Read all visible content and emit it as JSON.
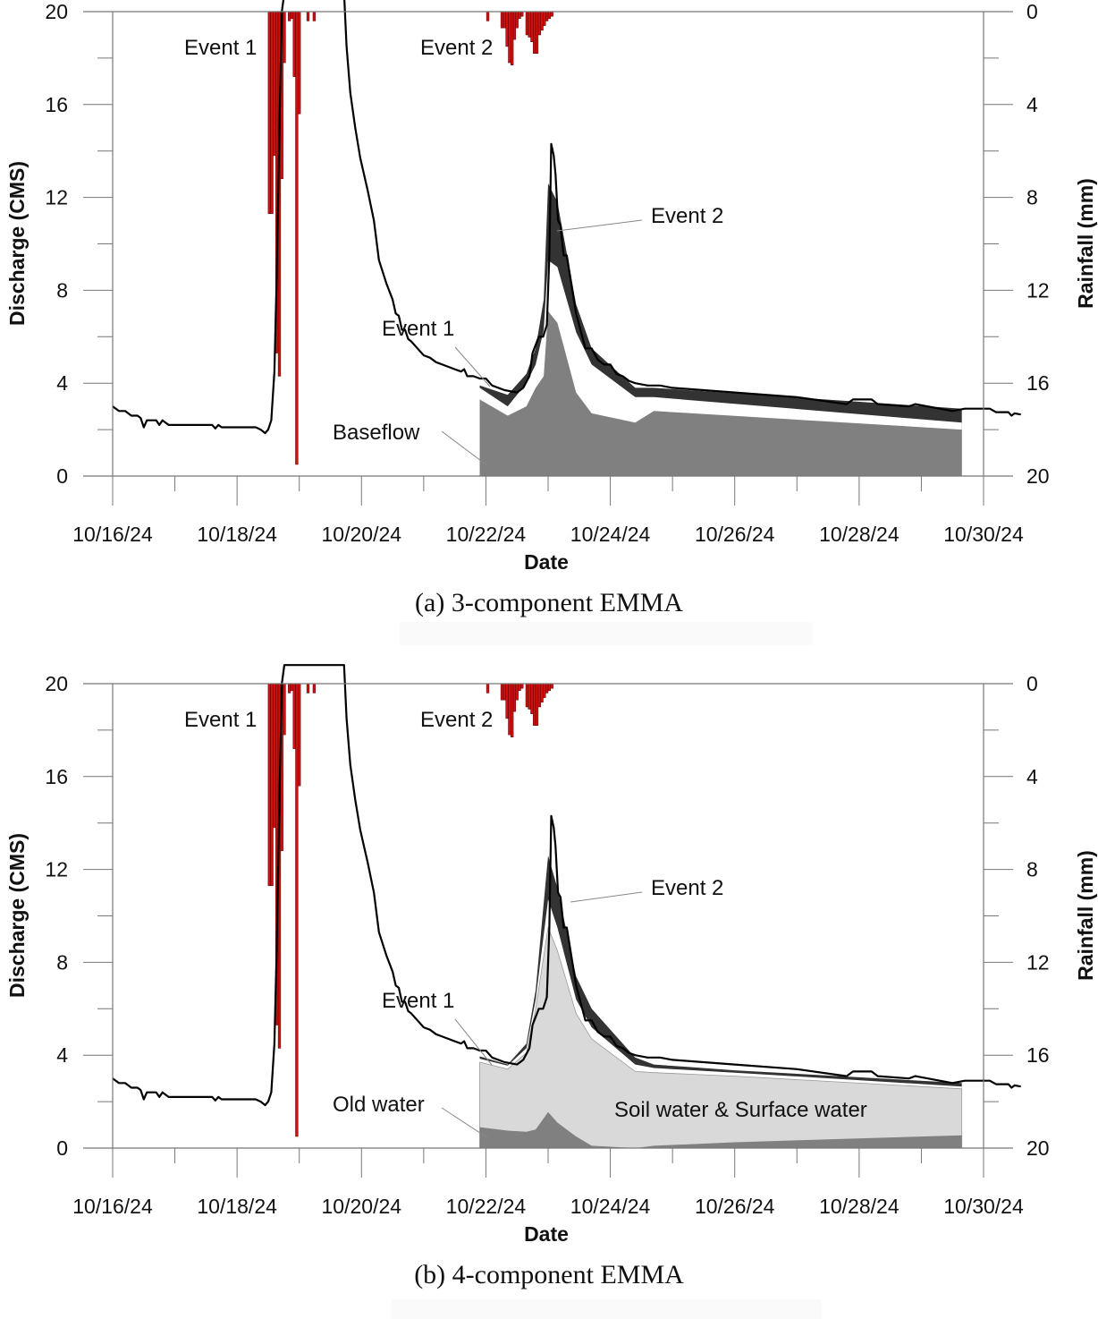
{
  "figure": {
    "panels": [
      "a",
      "b"
    ]
  },
  "chart_data": [
    {
      "id": "a",
      "type": "area",
      "caption": "(a) 3-component EMMA",
      "xlabel": "Date",
      "ylabel": "Discharge (CMS)",
      "ylabel_right": "Rainfall (mm)",
      "x_unit": "days since 10/16/24 00:00",
      "xlim": [
        0,
        14
      ],
      "ylim": [
        0,
        20
      ],
      "ylim_right": [
        20,
        0
      ],
      "right_axis_inverted": true,
      "x_ticks": [
        0,
        2,
        4,
        6,
        8,
        10,
        12,
        14
      ],
      "x_tick_labels": [
        "10/16/24",
        "10/18/24",
        "10/20/24",
        "10/22/24",
        "10/24/24",
        "10/26/24",
        "10/28/24",
        "10/30/24"
      ],
      "x_minor_ticks": [
        1,
        3,
        5,
        7,
        9,
        11,
        13
      ],
      "y_ticks": [
        0,
        4,
        8,
        12,
        16,
        20
      ],
      "y_tick_labels": [
        "0",
        "4",
        "8",
        "12",
        "16",
        "20"
      ],
      "y_right_ticks": [
        0,
        4,
        8,
        12,
        16,
        20
      ],
      "y_right_tick_labels": [
        "0",
        "4",
        "8",
        "12",
        "16",
        "20"
      ],
      "grid": false,
      "series": [
        {
          "name": "Discharge (observed)",
          "kind": "line",
          "color": "#000000",
          "x": [
            0,
            0.1,
            0.2,
            0.3,
            0.35,
            0.4,
            0.45,
            0.5,
            0.55,
            0.6,
            0.7,
            0.75,
            0.8,
            0.9,
            1.0,
            1.5,
            1.6,
            1.65,
            1.7,
            1.75,
            2.0,
            2.3,
            2.38,
            2.45,
            2.5,
            2.55,
            2.6,
            2.64,
            2.68,
            2.72,
            2.76,
            3.72,
            3.76,
            3.82,
            3.9,
            3.98,
            4.1,
            4.2,
            4.28,
            4.4,
            4.5,
            4.55,
            4.6,
            4.65,
            4.7,
            4.75,
            4.8,
            4.9,
            5.0,
            5.1,
            5.2,
            5.3,
            5.4,
            5.5,
            5.6,
            5.65,
            5.7,
            5.8,
            5.9,
            6.0,
            6.1,
            6.3,
            6.5,
            6.6,
            6.7,
            6.75,
            6.85,
            6.92,
            6.98,
            7.02,
            7.05,
            7.09,
            7.12,
            7.16,
            7.2,
            7.25,
            7.3,
            7.45,
            7.6,
            7.7,
            7.8,
            7.9,
            8.0,
            8.1,
            8.2,
            8.3,
            8.4,
            8.6,
            8.8,
            9.0,
            10.0,
            11.0,
            11.8,
            11.9,
            12.2,
            12.3,
            12.8,
            12.9,
            13.5,
            13.7,
            14.1,
            14.2,
            14.4,
            14.45,
            14.5,
            14.6
          ],
          "y": [
            3.0,
            2.8,
            2.8,
            2.6,
            2.6,
            2.6,
            2.5,
            2.1,
            2.4,
            2.4,
            2.4,
            2.2,
            2.4,
            2.2,
            2.2,
            2.2,
            2.2,
            2.05,
            2.2,
            2.1,
            2.1,
            2.1,
            2.0,
            1.85,
            2.0,
            2.4,
            4.5,
            9.0,
            15.0,
            20.0,
            21.0,
            21.0,
            18.5,
            16.5,
            15.0,
            13.7,
            12.3,
            11.0,
            9.3,
            8.3,
            7.6,
            7.0,
            6.9,
            6.3,
            6.3,
            5.9,
            5.8,
            5.5,
            5.2,
            5.1,
            4.9,
            4.8,
            4.7,
            4.6,
            4.5,
            4.6,
            4.3,
            4.3,
            4.2,
            4.2,
            3.9,
            3.7,
            3.6,
            3.8,
            4.3,
            5.3,
            6.0,
            6.0,
            6.5,
            9.5,
            14.3,
            13.8,
            13.0,
            11.0,
            10.8,
            9.5,
            9.5,
            7.0,
            5.5,
            5.5,
            5.0,
            4.8,
            4.8,
            4.4,
            4.3,
            4.1,
            4.0,
            3.9,
            3.9,
            3.8,
            3.6,
            3.4,
            3.1,
            3.3,
            3.3,
            3.1,
            3.0,
            3.1,
            2.8,
            2.9,
            2.9,
            2.75,
            2.75,
            2.6,
            2.7,
            2.65
          ]
        },
        {
          "name": "Baseflow",
          "kind": "stacked-area",
          "color": "#808080",
          "x": [
            5.9,
            6.35,
            6.65,
            6.8,
            6.93,
            7.0,
            7.15,
            7.45,
            7.7,
            8.4,
            8.7,
            13.65
          ],
          "y": [
            3.3,
            2.6,
            3.0,
            3.8,
            4.3,
            7.1,
            6.6,
            3.6,
            2.7,
            2.3,
            2.8,
            2.0
          ]
        },
        {
          "name": "Event 1",
          "kind": "stacked-area",
          "color": "#ffffff",
          "x": [
            5.9,
            6.35,
            6.65,
            6.8,
            6.93,
            7.0,
            7.15,
            7.45,
            7.7,
            8.4,
            8.7,
            13.65
          ],
          "y": [
            3.8,
            3.0,
            4.0,
            4.8,
            6.3,
            9.3,
            9.0,
            6.2,
            4.8,
            3.4,
            3.4,
            2.3
          ]
        },
        {
          "name": "Event 2",
          "kind": "stacked-area",
          "color": "#333333",
          "x": [
            5.9,
            6.35,
            6.65,
            6.8,
            6.93,
            7.0,
            7.15,
            7.45,
            7.7,
            8.4,
            8.7,
            13.65
          ],
          "y": [
            3.9,
            3.5,
            4.4,
            5.5,
            7.6,
            12.6,
            11.8,
            7.4,
            5.5,
            3.8,
            3.8,
            2.9
          ]
        },
        {
          "name": "Rainfall",
          "kind": "bar",
          "axis": "right",
          "color": "#cc1111",
          "x": [
            2.52,
            2.56,
            2.6,
            2.64,
            2.68,
            2.72,
            2.76,
            2.84,
            2.88,
            2.92,
            2.96,
            3.0,
            3.14,
            3.24,
            6.03,
            6.26,
            6.3,
            6.34,
            6.38,
            6.42,
            6.46,
            6.5,
            6.54,
            6.58,
            6.66,
            6.7,
            6.74,
            6.78,
            6.82,
            6.86,
            6.9,
            6.94,
            6.98,
            7.02,
            7.06
          ],
          "values": [
            8.7,
            8.7,
            6.2,
            14.7,
            15.7,
            7.2,
            2.2,
            0.4,
            0.3,
            2.8,
            19.5,
            4.4,
            0.4,
            0.4,
            0.4,
            0.7,
            0.7,
            1.5,
            2.2,
            2.3,
            1.2,
            0.7,
            0.3,
            0.2,
            1.0,
            1.1,
            1.3,
            1.8,
            1.8,
            1.0,
            0.8,
            0.6,
            0.4,
            0.3,
            0.2
          ]
        }
      ],
      "annotations": [
        {
          "text": "Event 1",
          "target": "rainfall-event-1"
        },
        {
          "text": "Event 2",
          "target": "rainfall-event-2"
        },
        {
          "text": "Event 2",
          "target": "event-2-component"
        },
        {
          "text": "Event 1",
          "target": "event-1-component"
        },
        {
          "text": "Baseflow",
          "target": "baseflow-component"
        }
      ]
    },
    {
      "id": "b",
      "type": "area",
      "caption": "(b) 4-component EMMA",
      "xlabel": "Date",
      "ylabel": "Discharge (CMS)",
      "ylabel_right": "Rainfall (mm)",
      "x_unit": "days since 10/16/24 00:00",
      "xlim": [
        0,
        14
      ],
      "ylim": [
        0,
        20
      ],
      "ylim_right": [
        20,
        0
      ],
      "right_axis_inverted": true,
      "x_ticks": [
        0,
        2,
        4,
        6,
        8,
        10,
        12,
        14
      ],
      "x_tick_labels": [
        "10/16/24",
        "10/18/24",
        "10/20/24",
        "10/22/24",
        "10/24/24",
        "10/26/24",
        "10/28/24",
        "10/30/24"
      ],
      "x_minor_ticks": [
        1,
        3,
        5,
        7,
        9,
        11,
        13
      ],
      "y_ticks": [
        0,
        4,
        8,
        12,
        16,
        20
      ],
      "y_tick_labels": [
        "0",
        "4",
        "8",
        "12",
        "16",
        "20"
      ],
      "y_right_ticks": [
        0,
        4,
        8,
        12,
        16,
        20
      ],
      "y_right_tick_labels": [
        "0",
        "4",
        "8",
        "12",
        "16",
        "20"
      ],
      "grid": false,
      "series": [
        {
          "name": "Discharge (observed)",
          "kind": "line",
          "color": "#000000",
          "same_as": "a"
        },
        {
          "name": "Old water",
          "kind": "stacked-area",
          "color": "#808080",
          "x": [
            5.9,
            6.35,
            6.65,
            6.8,
            7.0,
            7.15,
            7.45,
            7.7,
            8.4,
            8.7,
            10.0,
            13.65
          ],
          "y": [
            0.9,
            0.75,
            0.7,
            0.8,
            1.55,
            1.1,
            0.5,
            0.1,
            0.0,
            0.1,
            0.25,
            0.55
          ]
        },
        {
          "name": "Soil water & Surface water",
          "kind": "stacked-area",
          "color": "#d9d9d9",
          "x": [
            5.9,
            6.35,
            6.65,
            6.8,
            7.0,
            7.15,
            7.45,
            7.7,
            8.4,
            8.7,
            10.0,
            13.65
          ],
          "y": [
            3.7,
            3.4,
            4.1,
            6.0,
            9.5,
            8.5,
            5.8,
            4.7,
            3.3,
            3.25,
            3.1,
            2.55
          ]
        },
        {
          "name": "Event 1",
          "kind": "stacked-area",
          "color": "#ffffff",
          "x": [
            5.9,
            6.35,
            6.65,
            6.8,
            7.0,
            7.15,
            7.45,
            7.7,
            8.4,
            8.7,
            10.0,
            13.65
          ],
          "y": [
            3.85,
            3.55,
            4.3,
            6.4,
            10.7,
            9.5,
            6.4,
            5.2,
            3.6,
            3.45,
            3.25,
            2.65
          ]
        },
        {
          "name": "Event 2",
          "kind": "stacked-area",
          "color": "#333333",
          "x": [
            5.9,
            6.35,
            6.65,
            6.8,
            7.0,
            7.15,
            7.45,
            7.7,
            8.4,
            8.7,
            10.0,
            13.65
          ],
          "y": [
            3.95,
            3.6,
            4.5,
            6.8,
            12.6,
            11.2,
            7.4,
            6.0,
            3.9,
            3.6,
            3.35,
            2.8
          ]
        },
        {
          "name": "Rainfall",
          "kind": "bar",
          "axis": "right",
          "color": "#cc1111",
          "same_as": "a"
        }
      ],
      "annotations": [
        {
          "text": "Event 1",
          "target": "rainfall-event-1"
        },
        {
          "text": "Event 2",
          "target": "rainfall-event-2"
        },
        {
          "text": "Event 2",
          "target": "event-2-component"
        },
        {
          "text": "Event 1",
          "target": "event-1-component"
        },
        {
          "text": "Old water",
          "target": "old-water-component"
        },
        {
          "text": "Soil water & Surface water",
          "target": "soil-surface-water-component"
        }
      ]
    }
  ]
}
